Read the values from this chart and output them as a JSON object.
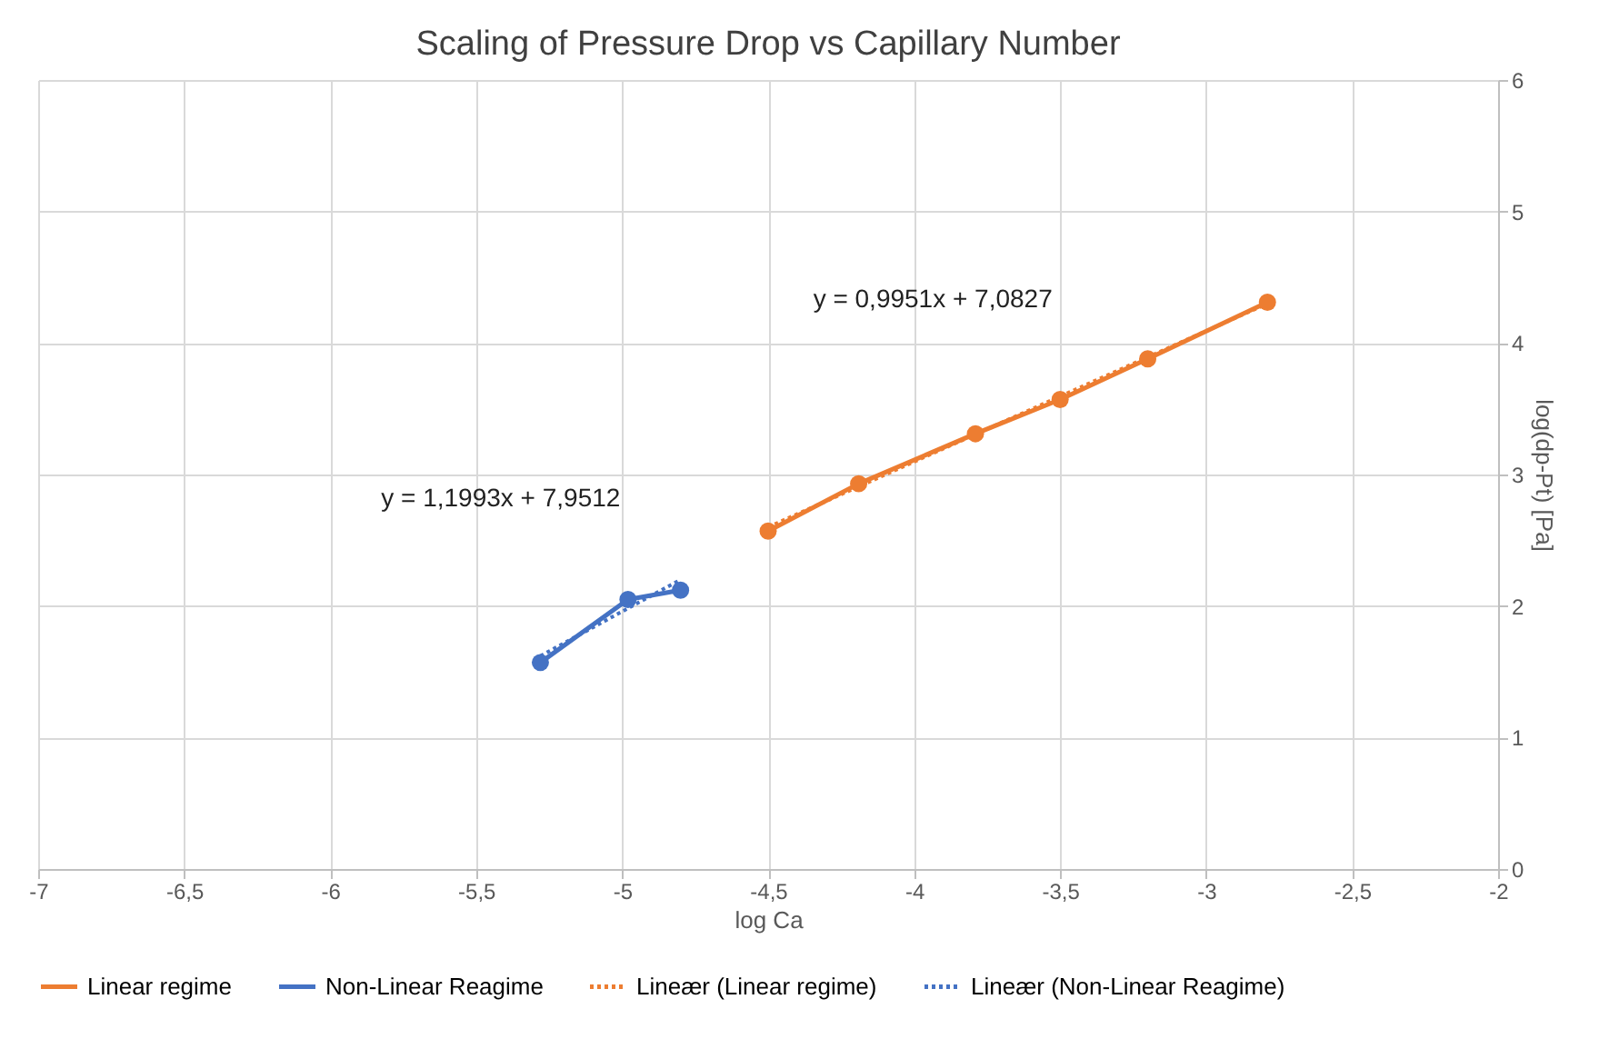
{
  "chart_data": {
    "type": "line",
    "title": "Scaling of Pressure Drop vs Capillary Number",
    "xlabel": "log Ca",
    "ylabel": "log(dp-Pt) [Pa]",
    "xlim": [
      -7,
      -2
    ],
    "xticks": [
      -7,
      {
        "value": -6.5,
        "label": "-6,5"
      },
      -6,
      {
        "value": -5.5,
        "label": "-5,5"
      },
      -5,
      {
        "value": -4.5,
        "label": "-4,5"
      },
      -4,
      {
        "value": -3.5,
        "label": "-3,5"
      },
      -3,
      {
        "value": -2.5,
        "label": "-2,5"
      },
      -2
    ],
    "ylim": [
      0,
      6
    ],
    "yticks": [
      0,
      1,
      2,
      3,
      4,
      5,
      6
    ],
    "grid": true,
    "legend": "bottom",
    "series": [
      {
        "name": "Linear regime",
        "color": "#ed7d31",
        "marker": "circle",
        "line_style": "solid",
        "x": [
          -4.5,
          -4.19,
          -3.79,
          -3.5,
          -3.2,
          -2.79
        ],
        "values": [
          2.57,
          2.93,
          3.31,
          3.57,
          3.88,
          4.31
        ]
      },
      {
        "name": "Non-Linear Reagime",
        "color": "#4472c4",
        "marker": "circle",
        "line_style": "solid",
        "x": [
          -5.28,
          -4.98,
          -4.8
        ],
        "values": [
          1.57,
          2.05,
          2.12
        ]
      },
      {
        "name": "Lineær (Linear regime)",
        "color": "#ed7d31",
        "marker": "none",
        "line_style": "dotted",
        "x": [
          -4.5,
          -2.79
        ],
        "values": [
          2.6,
          4.3
        ]
      },
      {
        "name": "Lineær (Non-Linear Reagime)",
        "color": "#4472c4",
        "marker": "none",
        "line_style": "dotted",
        "x": [
          -5.28,
          -4.8
        ],
        "values": [
          1.62,
          2.2
        ]
      }
    ],
    "annotations": [
      "y = 0,9951x + 7,0827",
      "y = 1,1993x + 7,9512"
    ]
  }
}
